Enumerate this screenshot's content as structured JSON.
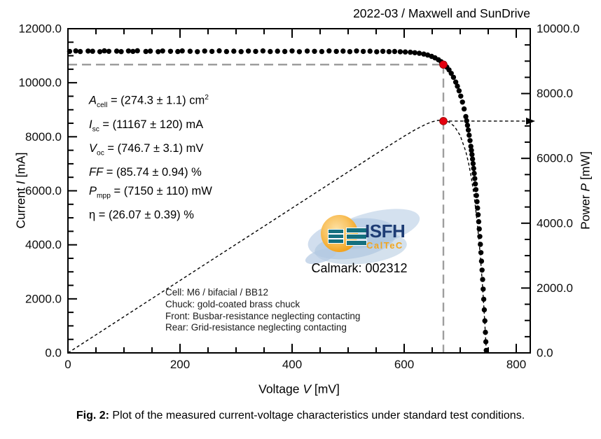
{
  "header": {
    "title": "2022-03 / Maxwell and SunDrive"
  },
  "caption": {
    "label": "Fig. 2:",
    "text": " Plot of the measured current-voltage characteristics under standard test conditions."
  },
  "logo": {
    "brand": "ISFH",
    "division": "CalTeC",
    "calmark": "Calmark: 002312",
    "colors": {
      "navy": "#1d3c74",
      "orange": "#f2a51d",
      "teal": "#14707f",
      "splash": "#b7cbe3",
      "sun": "#f3a41f"
    }
  },
  "stats": {
    "lines": [
      {
        "variable": "A",
        "subscript": "cell",
        "italic": true,
        "rest": " = (274.3 ± 1.1) cm",
        "superscript": "2"
      },
      {
        "variable": "I",
        "subscript": "sc",
        "italic": true,
        "rest": " = (11167 ± 120) mA",
        "superscript": ""
      },
      {
        "variable": "V",
        "subscript": "oc",
        "italic": true,
        "rest": " = (746.7 ± 3.1) mV",
        "superscript": ""
      },
      {
        "variable": "FF",
        "subscript": "",
        "italic": true,
        "rest": " = (85.74 ± 0.94) %",
        "superscript": ""
      },
      {
        "variable": "P",
        "subscript": "mpp",
        "italic": true,
        "rest": " = (7150 ± 110) mW",
        "superscript": ""
      },
      {
        "variable": "η",
        "subscript": "",
        "italic": false,
        "rest": " = (26.07 ± 0.39) %",
        "superscript": ""
      }
    ]
  },
  "cell_info": {
    "lines": [
      "Cell: M6 / bifacial / BB12",
      "Chuck: gold-coated brass chuck",
      "Front: Busbar-resistance neglecting contacting",
      "Rear: Grid-resistance neglecting contacting"
    ]
  },
  "chart_data": {
    "type": "scatter",
    "title": "2022-03 / Maxwell and SunDrive",
    "grid": false,
    "x_axis": {
      "title_prefix": "Voltage ",
      "title_var": "V",
      "title_suffix": " [mV]",
      "min": 0,
      "max": 825,
      "major_ticks": [
        0,
        200,
        400,
        600,
        800
      ],
      "tick_labels": [
        "0",
        "200",
        "400",
        "600",
        "800"
      ],
      "minor_step": 50
    },
    "y_left": {
      "title_prefix": "Current ",
      "title_var": "I",
      "title_suffix": " [mA]",
      "min": 0,
      "max": 12000,
      "major_step": 2000,
      "minor_step": 500,
      "tick_labels": [
        "0.0",
        "2000.0",
        "4000.0",
        "6000.0",
        "8000.0",
        "10000.0",
        "12000.0"
      ]
    },
    "y_right": {
      "title_prefix": "Power ",
      "title_var": "P",
      "title_suffix": " [mW]",
      "min": 0,
      "max": 10000,
      "major_step": 2000,
      "minor_step": 500,
      "tick_labels": [
        "0.0",
        "2000.0",
        "4000.0",
        "6000.0",
        "8000.0",
        "10000.0"
      ]
    },
    "key_values": {
      "isc_mA": 11167,
      "voc_mV": 746.7,
      "ff_pct": 85.74,
      "pmpp_mW": 7150,
      "eta_pct": 26.07
    },
    "mpp": {
      "v": 670,
      "i": 10672,
      "p": 7150,
      "marker_color": "#e4000f",
      "guide_color": "#9e9e9e"
    },
    "series": [
      {
        "name": "measured I-V points",
        "style": "dots",
        "color": "#000000",
        "axis": "left",
        "points": [
          [
            3,
            11160
          ],
          [
            14,
            11178
          ],
          [
            22,
            11155
          ],
          [
            36,
            11172
          ],
          [
            44,
            11166
          ],
          [
            57,
            11150
          ],
          [
            65,
            11181
          ],
          [
            73,
            11163
          ],
          [
            87,
            11170
          ],
          [
            95,
            11152
          ],
          [
            108,
            11176
          ],
          [
            116,
            11160
          ],
          [
            124,
            11183
          ],
          [
            139,
            11158
          ],
          [
            147,
            11170
          ],
          [
            161,
            11151
          ],
          [
            169,
            11175
          ],
          [
            183,
            11162
          ],
          [
            196,
            11156
          ],
          [
            204,
            11178
          ],
          [
            218,
            11165
          ],
          [
            231,
            11149
          ],
          [
            244,
            11173
          ],
          [
            257,
            11160
          ],
          [
            270,
            11180
          ],
          [
            283,
            11155
          ],
          [
            296,
            11168
          ],
          [
            309,
            11152
          ],
          [
            322,
            11174
          ],
          [
            335,
            11161
          ],
          [
            348,
            11179
          ],
          [
            361,
            11154
          ],
          [
            374,
            11169
          ],
          [
            387,
            11158
          ],
          [
            400,
            11176
          ],
          [
            413,
            11150
          ],
          [
            427,
            11172
          ],
          [
            440,
            11164
          ],
          [
            453,
            11156
          ],
          [
            466,
            11178
          ],
          [
            479,
            11161
          ],
          [
            491,
            11170
          ],
          [
            503,
            11153
          ],
          [
            515,
            11175
          ],
          [
            527,
            11159
          ],
          [
            539,
            11168
          ],
          [
            551,
            11147
          ],
          [
            562,
            11162
          ],
          [
            573,
            11152
          ],
          [
            583,
            11157
          ],
          [
            593,
            11148
          ],
          [
            602,
            11140
          ],
          [
            611,
            11128
          ],
          [
            619,
            11112
          ],
          [
            627,
            11091
          ],
          [
            635,
            11061
          ],
          [
            642,
            11025
          ],
          [
            649,
            10976
          ],
          [
            655,
            10922
          ],
          [
            661,
            10852
          ],
          [
            666,
            10779
          ],
          [
            671,
            10690
          ],
          [
            676,
            10581
          ],
          [
            680,
            10475
          ],
          [
            684,
            10347
          ],
          [
            688,
            10200
          ],
          [
            692,
            10025
          ],
          [
            695,
            9873
          ],
          [
            698,
            9700
          ],
          [
            701,
            9504
          ],
          [
            704,
            9283
          ],
          [
            707,
            9031
          ],
          [
            710,
            8747
          ],
          [
            711.5,
            8591
          ],
          [
            713,
            8424
          ],
          [
            714.5,
            8247
          ],
          [
            716,
            8059
          ],
          [
            717.5,
            7859
          ],
          [
            719,
            7645
          ],
          [
            720,
            7495
          ],
          [
            721,
            7340
          ],
          [
            722,
            7177
          ],
          [
            723,
            7007
          ],
          [
            724,
            6830
          ],
          [
            725,
            6646
          ],
          [
            726,
            6453
          ],
          [
            727,
            6254
          ],
          [
            728,
            6044
          ],
          [
            729,
            5826
          ],
          [
            730,
            5599
          ],
          [
            731,
            5362
          ],
          [
            732,
            5114
          ],
          [
            733,
            4857
          ],
          [
            734,
            4587
          ],
          [
            735,
            4308
          ],
          [
            736,
            4017
          ],
          [
            737,
            3711
          ],
          [
            738,
            3396
          ],
          [
            739,
            3064
          ],
          [
            740,
            2719
          ],
          [
            741,
            2361
          ],
          [
            742,
            1985
          ],
          [
            743,
            1594
          ],
          [
            744,
            1188
          ],
          [
            745,
            763
          ],
          [
            745.8,
            411
          ],
          [
            746.5,
            93
          ]
        ]
      },
      {
        "name": "power curve P = V·I",
        "style": "dashed-line",
        "color": "#000000",
        "axis": "right",
        "points": [
          [
            0,
            0
          ],
          [
            50,
            558
          ],
          [
            100,
            1117
          ],
          [
            150,
            1675
          ],
          [
            200,
            2233
          ],
          [
            250,
            2792
          ],
          [
            300,
            3350
          ],
          [
            350,
            3908
          ],
          [
            400,
            4467
          ],
          [
            450,
            5025
          ],
          [
            500,
            5583
          ],
          [
            550,
            6140
          ],
          [
            600,
            6685
          ],
          [
            620,
            6888
          ],
          [
            640,
            7063
          ],
          [
            650,
            7129
          ],
          [
            660,
            7171
          ],
          [
            670,
            7176
          ],
          [
            680,
            7123
          ],
          [
            690,
            6981
          ],
          [
            700,
            6705
          ],
          [
            710,
            6211
          ],
          [
            715,
            5852
          ],
          [
            720,
            5390
          ],
          [
            725,
            4817
          ],
          [
            730,
            4087
          ],
          [
            735,
            3168
          ],
          [
            738,
            2506
          ],
          [
            740,
            2012
          ],
          [
            742,
            1475
          ],
          [
            744,
            884
          ],
          [
            746,
            242
          ],
          [
            746.7,
            0
          ]
        ]
      }
    ]
  }
}
